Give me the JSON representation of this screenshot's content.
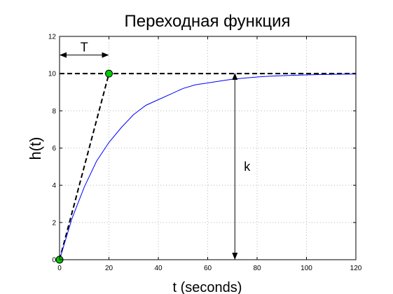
{
  "chart_data": {
    "type": "line",
    "title": "Переходная функция",
    "xlabel": "t (seconds)",
    "ylabel": "h(t)",
    "xlim": [
      0,
      120
    ],
    "ylim": [
      0,
      12
    ],
    "xticks": [
      0,
      20,
      40,
      60,
      80,
      100,
      120
    ],
    "yticks": [
      0,
      2,
      4,
      6,
      8,
      10,
      12
    ],
    "grid": true,
    "series": [
      {
        "type": "line",
        "color": "#0000ff",
        "x": [
          0,
          5,
          10,
          15,
          20,
          25,
          30,
          35,
          40,
          45,
          50,
          55,
          60,
          65,
          70,
          75,
          80,
          85,
          90,
          95,
          100,
          105,
          110,
          115,
          120
        ],
        "y": [
          0,
          2.2,
          3.9,
          5.3,
          6.3,
          7.1,
          7.8,
          8.3,
          8.6,
          8.9,
          9.2,
          9.4,
          9.5,
          9.6,
          9.7,
          9.76,
          9.82,
          9.86,
          9.89,
          9.91,
          9.93,
          9.95,
          9.96,
          9.97,
          9.98
        ]
      }
    ],
    "reference_lines": [
      {
        "style": "dashed",
        "color": "#000000",
        "x": [
          0,
          20
        ],
        "y": [
          0,
          10
        ]
      },
      {
        "style": "dashed",
        "color": "#000000",
        "x": [
          0,
          120
        ],
        "y": [
          10,
          10
        ]
      }
    ],
    "markers": [
      {
        "x": 0,
        "y": 0,
        "color": "#00cc00"
      },
      {
        "x": 20,
        "y": 10,
        "color": "#00cc00"
      }
    ],
    "annotations": [
      {
        "text": "T",
        "arrow_x": [
          0,
          20
        ],
        "arrow_y": 11
      },
      {
        "text": "k",
        "arrow_x": 71,
        "arrow_y": [
          0,
          10
        ]
      }
    ]
  }
}
